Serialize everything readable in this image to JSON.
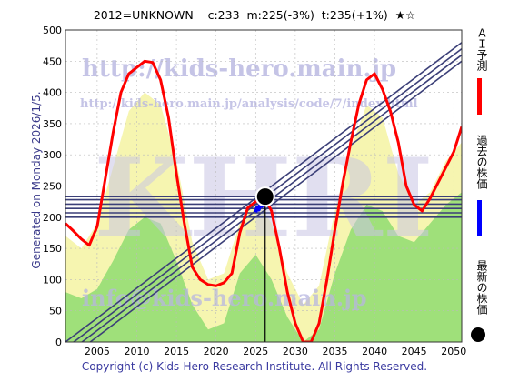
{
  "header": {
    "title": "2012=UNKNOWN    c:233  m:225(-3%)  t:235(+1%)  ★☆"
  },
  "side_text": "Generated on Monday 2026/1/5.",
  "footer": {
    "copyright": "Copyright (c) Kids-Hero Research Institute. All Rights Reserved."
  },
  "watermarks": {
    "url_top": "http://kids-hero.main.jp",
    "url_mid": "http://kids-hero.main.jp/analysis/code/7/index.html",
    "big": "KHRI",
    "email": "info@kids-hero.main.jp"
  },
  "legend": [
    {
      "label": "ＡＩ予測",
      "color": "#ff0000",
      "kind": "line"
    },
    {
      "label": "過去の株価",
      "color": "#0000ff",
      "kind": "line"
    },
    {
      "label": "最新の株価",
      "color": "#000000",
      "kind": "dot"
    }
  ],
  "colors": {
    "plot_bg": "#ffffff",
    "band_yellow": "#f6f5b0",
    "band_green": "#9fe07a",
    "ai_line": "#ff0000",
    "past_line": "#0000ff",
    "channel": "#3b3f78",
    "grid": "#bbbbbb"
  },
  "chart_data": {
    "type": "line",
    "title": "",
    "xlabel": "",
    "ylabel": "",
    "xlim": [
      2001,
      2051
    ],
    "ylim": [
      0,
      500
    ],
    "x_ticks": [
      2005,
      2010,
      2015,
      2020,
      2025,
      2030,
      2035,
      2040,
      2045,
      2050
    ],
    "y_ticks": [
      0,
      50,
      100,
      150,
      200,
      250,
      300,
      350,
      400,
      450,
      500
    ],
    "grid": true,
    "legend_position": "right",
    "series": [
      {
        "name": "ＡＩ予測",
        "color": "#ff0000",
        "x": [
          2001,
          2002,
          2003,
          2004,
          2005,
          2006,
          2007,
          2008,
          2009,
          2010,
          2011,
          2012,
          2013,
          2014,
          2015,
          2016,
          2017,
          2018,
          2019,
          2020,
          2021,
          2022,
          2023,
          2024,
          2025,
          2026,
          2027,
          2028,
          2029,
          2030,
          2031,
          2032,
          2033,
          2034,
          2035,
          2036,
          2037,
          2038,
          2039,
          2040,
          2041,
          2042,
          2043,
          2044,
          2045,
          2046,
          2047,
          2048,
          2049,
          2050,
          2051
        ],
        "y": [
          190,
          178,
          165,
          155,
          185,
          260,
          335,
          400,
          430,
          440,
          450,
          448,
          420,
          360,
          270,
          190,
          120,
          100,
          92,
          90,
          95,
          110,
          175,
          215,
          225,
          235,
          210,
          150,
          80,
          30,
          0,
          0,
          30,
          100,
          180,
          255,
          320,
          380,
          420,
          430,
          405,
          370,
          320,
          250,
          220,
          210,
          230,
          255,
          280,
          305,
          345
        ]
      },
      {
        "name": "過去の株価",
        "color": "#0000ff",
        "x": [
          2025.0,
          2025.2,
          2025.4,
          2025.6,
          2025.8,
          2026.0
        ],
        "y": [
          208,
          216,
          212,
          222,
          218,
          225
        ]
      }
    ],
    "latest_point": {
      "name": "最新の株価",
      "x": 2026.2,
      "y": 233
    },
    "horizontal_channel": [
      200,
      207,
      214,
      221,
      228,
      233
    ],
    "trend_channel": {
      "x": [
        2001,
        2051
      ],
      "lines": [
        {
          "y": [
            -30,
            450
          ]
        },
        {
          "y": [
            -20,
            460
          ]
        },
        {
          "y": [
            -10,
            470
          ]
        },
        {
          "y": [
            0,
            480
          ]
        }
      ]
    },
    "band_yellow": {
      "x": [
        2001,
        2003,
        2005,
        2007,
        2009,
        2011,
        2013,
        2015,
        2017,
        2019,
        2021,
        2023,
        2025,
        2027,
        2029,
        2031,
        2033,
        2035,
        2037,
        2039,
        2041,
        2043,
        2045,
        2047,
        2049,
        2051
      ],
      "y": [
        170,
        150,
        190,
        280,
        370,
        400,
        380,
        290,
        160,
        100,
        110,
        190,
        230,
        190,
        110,
        60,
        90,
        210,
        310,
        380,
        360,
        270,
        220,
        240,
        290,
        320
      ]
    },
    "band_green": {
      "x": [
        2001,
        2003,
        2005,
        2007,
        2009,
        2011,
        2013,
        2015,
        2017,
        2019,
        2021,
        2023,
        2025,
        2027,
        2029,
        2031,
        2033,
        2035,
        2037,
        2039,
        2041,
        2043,
        2045,
        2047,
        2049,
        2051
      ],
      "y": [
        80,
        70,
        85,
        130,
        180,
        200,
        190,
        130,
        60,
        20,
        30,
        110,
        140,
        100,
        40,
        0,
        20,
        110,
        180,
        220,
        210,
        170,
        160,
        190,
        220,
        240
      ]
    }
  }
}
